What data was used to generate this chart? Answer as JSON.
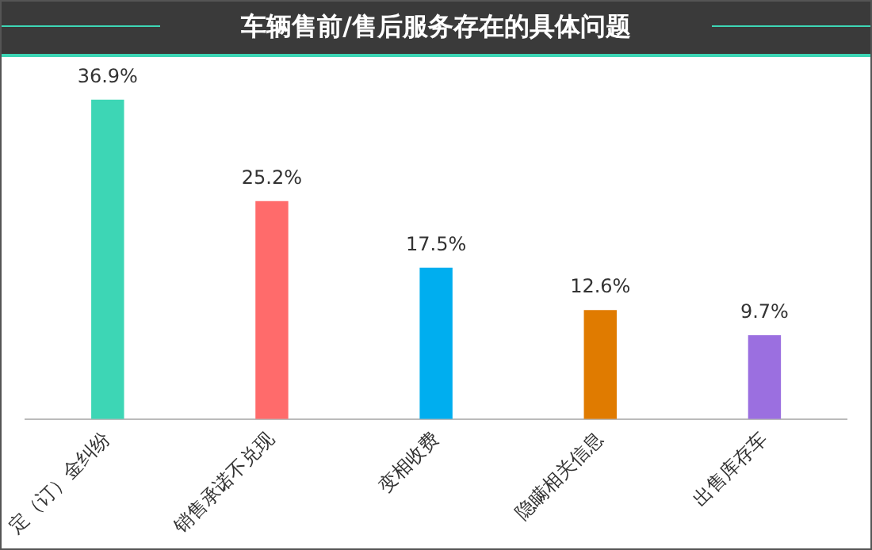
{
  "chart_data": {
    "type": "bar",
    "title": "车辆售前/售后服务存在的具体问题",
    "categories": [
      "定（订）金纠纷",
      "销售承诺不兑现",
      "变相收费",
      "隐瞒相关信息",
      "出售库存车"
    ],
    "values": [
      36.9,
      25.2,
      17.5,
      12.6,
      9.7
    ],
    "colors": [
      "#3dd6b5",
      "#ff6b6b",
      "#00aeef",
      "#e07b00",
      "#9b6fe0"
    ],
    "value_labels": [
      "36.9%",
      "25.2%",
      "17.5%",
      "12.6%",
      "9.7%"
    ],
    "grid": false,
    "legend": false,
    "tick_labels": "x"
  }
}
